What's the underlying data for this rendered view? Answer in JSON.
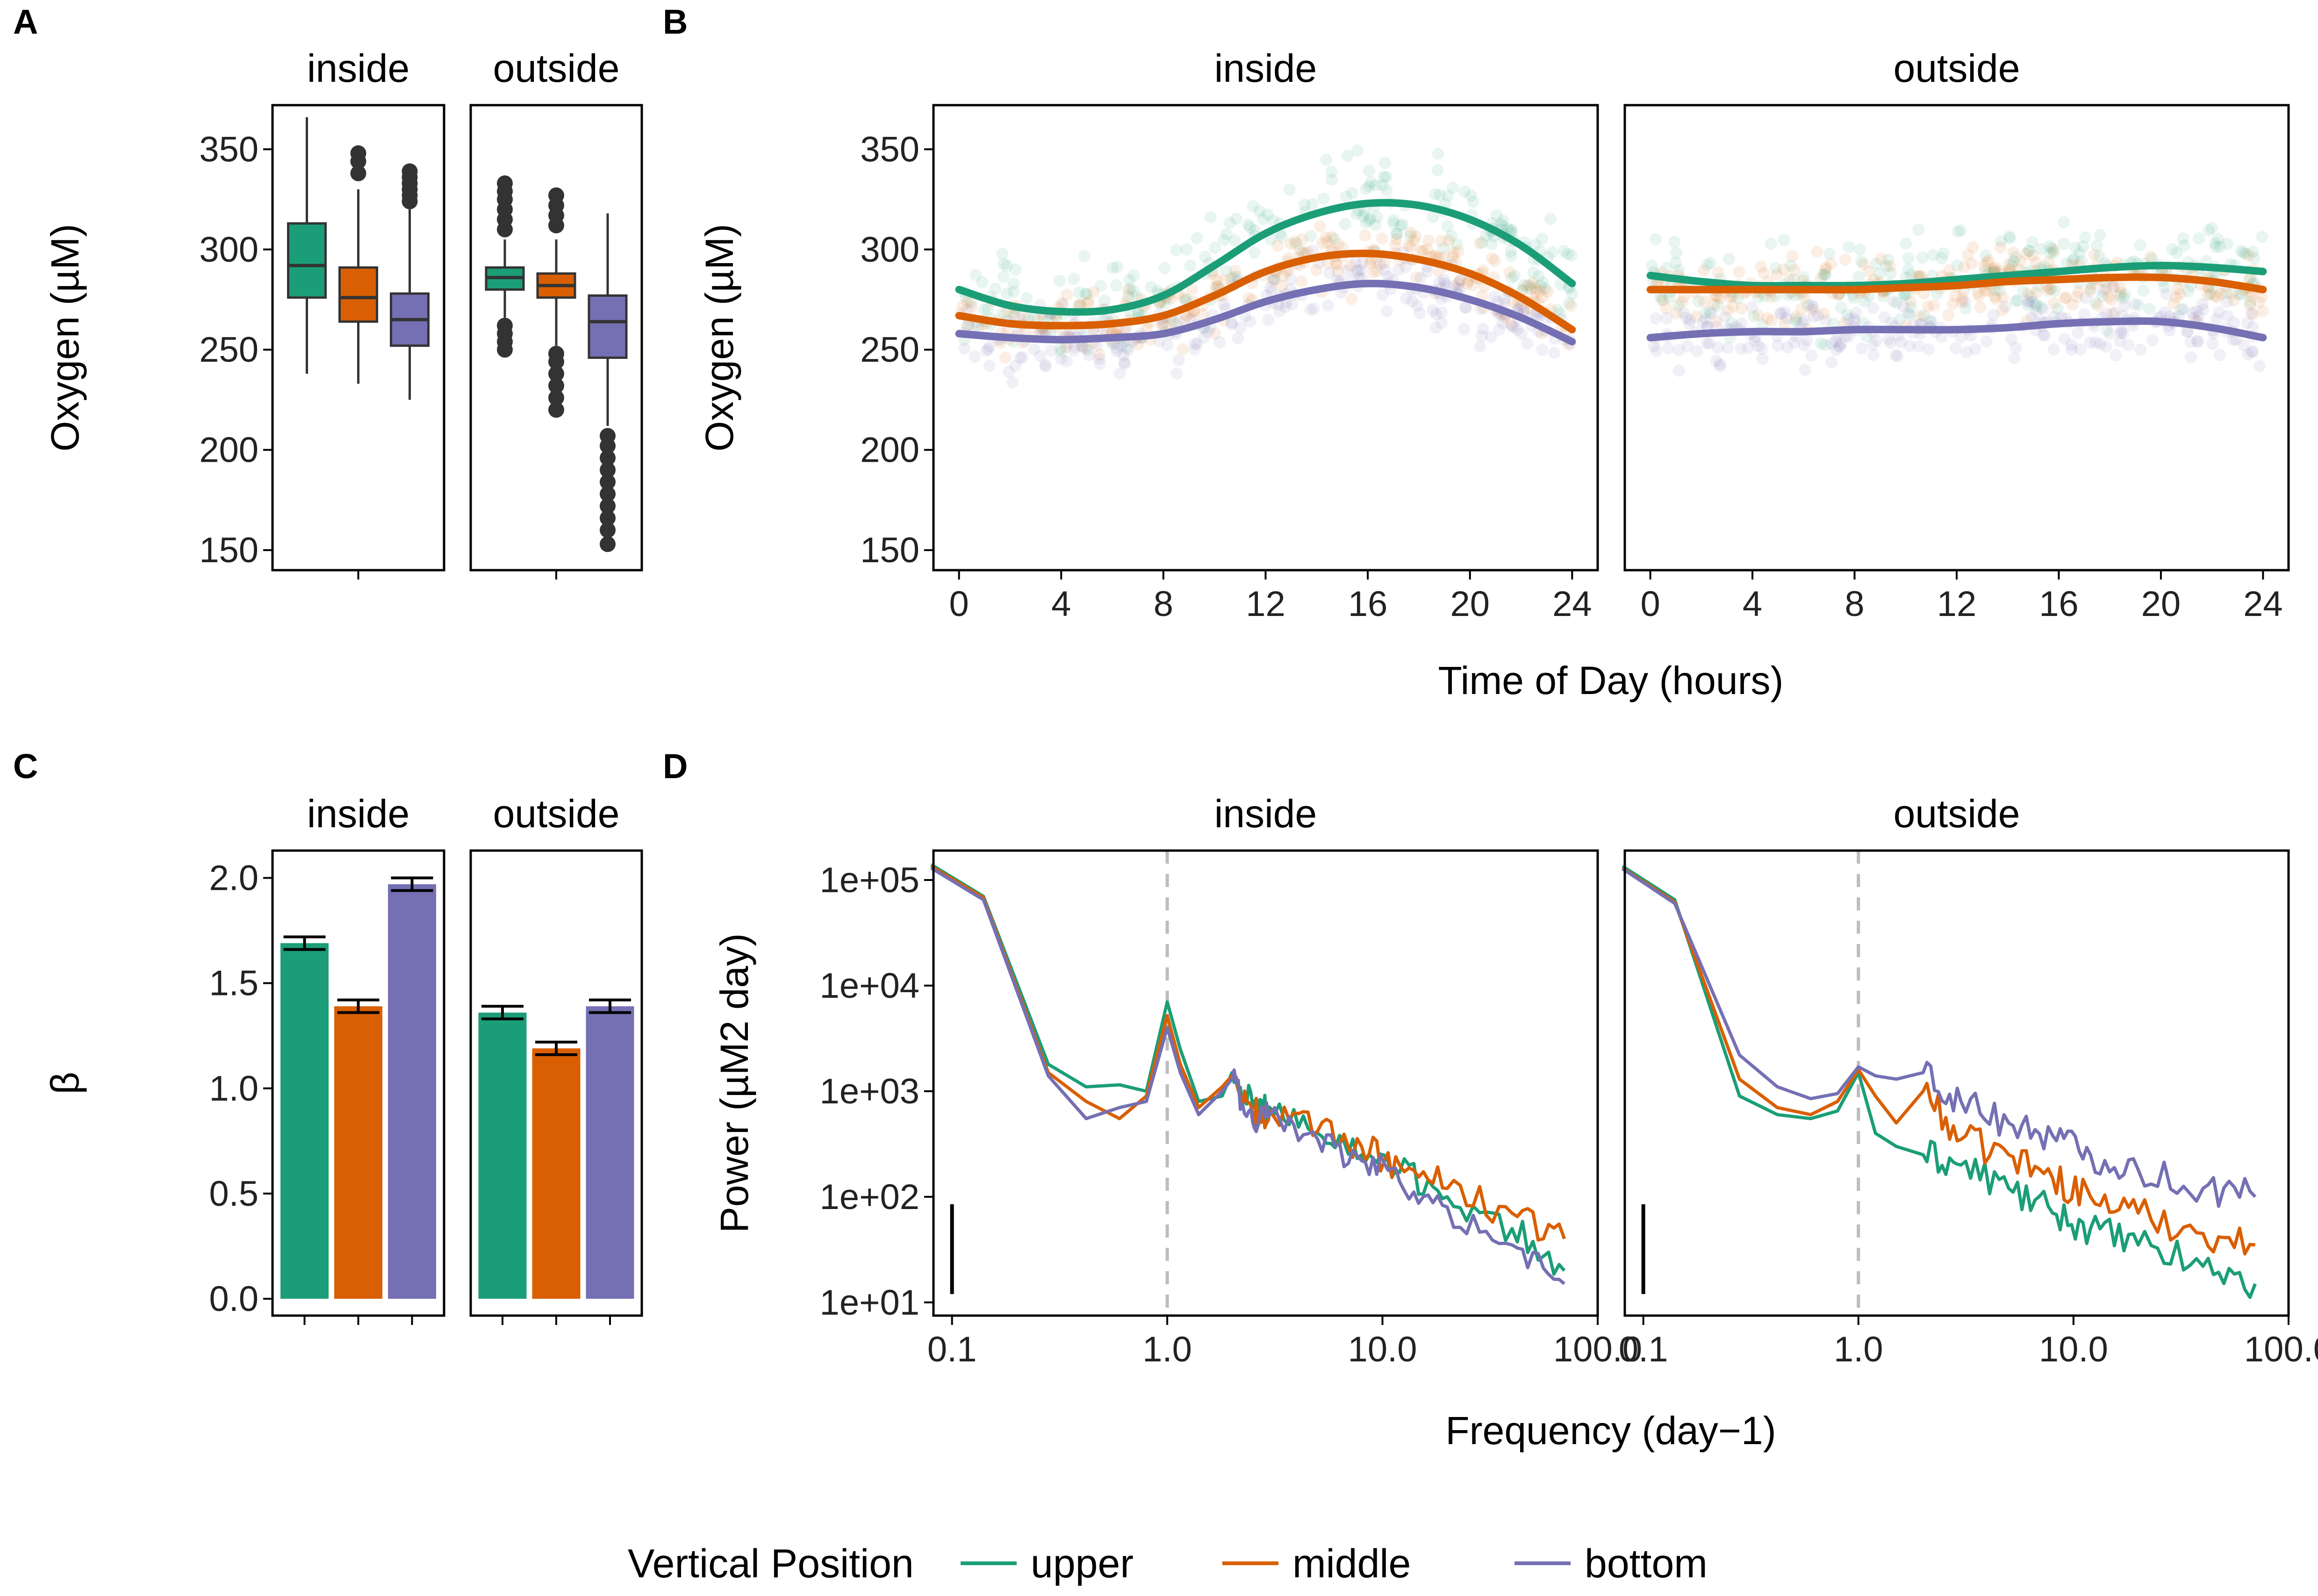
{
  "colors": {
    "upper": "#1b9e77",
    "middle": "#d95f02",
    "bottom": "#7570b3",
    "box_edge": "#333333",
    "outlier": "#333333",
    "refline": "#bdbdbd"
  },
  "legend": {
    "title": "Vertical Position",
    "items": [
      {
        "name": "upper",
        "color": "#1b9e77"
      },
      {
        "name": "middle",
        "color": "#d95f02"
      },
      {
        "name": "bottom",
        "color": "#7570b3"
      }
    ]
  },
  "panels": {
    "A": "A",
    "B": "B",
    "C": "C",
    "D": "D"
  },
  "facets": [
    "inside",
    "outside"
  ],
  "chart_data": [
    {
      "id": "A",
      "type": "box",
      "ylabel": "Oxygen (µM)",
      "ylim": [
        140,
        372
      ],
      "yticks": [
        150,
        200,
        250,
        300,
        350
      ],
      "groups": [
        "upper",
        "middle",
        "bottom"
      ],
      "facets": [
        {
          "name": "inside",
          "boxes": [
            {
              "group": "upper",
              "min": 238,
              "q1": 276,
              "median": 292,
              "q3": 313,
              "max": 366,
              "outliers": []
            },
            {
              "group": "middle",
              "min": 233,
              "q1": 264,
              "median": 276,
              "q3": 291,
              "max": 330,
              "outliers": [
                338,
                344,
                348
              ]
            },
            {
              "group": "bottom",
              "min": 225,
              "q1": 252,
              "median": 265,
              "q3": 278,
              "max": 320,
              "outliers": [
                324,
                327,
                330,
                333,
                336,
                339
              ]
            }
          ]
        },
        {
          "name": "outside",
          "boxes": [
            {
              "group": "upper",
              "min": 266,
              "q1": 280,
              "median": 286,
              "q3": 291,
              "max": 305,
              "outliers": [
                250,
                254,
                258,
                262,
                310,
                315,
                320,
                325,
                329,
                333
              ]
            },
            {
              "group": "middle",
              "min": 252,
              "q1": 276,
              "median": 282,
              "q3": 288,
              "max": 305,
              "outliers": [
                220,
                226,
                232,
                238,
                244,
                248,
                312,
                317,
                322,
                327
              ]
            },
            {
              "group": "bottom",
              "min": 212,
              "q1": 246,
              "median": 264,
              "q3": 277,
              "max": 318,
              "outliers": [
                153,
                160,
                166,
                172,
                178,
                184,
                190,
                196,
                202,
                207
              ]
            }
          ]
        }
      ]
    },
    {
      "id": "B",
      "type": "line",
      "xlabel": "Time of Day (hours)",
      "ylabel": "Oxygen (µM)",
      "xlim": [
        -1,
        25
      ],
      "ylim": [
        140,
        372
      ],
      "xticks": [
        0,
        4,
        8,
        12,
        16,
        20,
        24
      ],
      "yticks": [
        150,
        200,
        250,
        300,
        350
      ],
      "x": [
        0,
        2,
        4,
        6,
        8,
        10,
        12,
        14,
        16,
        18,
        20,
        22,
        24
      ],
      "facets": [
        {
          "name": "inside",
          "series": [
            {
              "name": "upper",
              "values": [
                280,
                272,
                269,
                270,
                277,
                292,
                308,
                318,
                323,
                322,
                315,
                302,
                283
              ]
            },
            {
              "name": "middle",
              "values": [
                267,
                263,
                262,
                263,
                267,
                277,
                289,
                296,
                298,
                295,
                288,
                276,
                260
              ]
            },
            {
              "name": "bottom",
              "values": [
                258,
                256,
                255,
                256,
                258,
                265,
                274,
                280,
                283,
                281,
                275,
                266,
                254
              ]
            }
          ]
        },
        {
          "name": "outside",
          "series": [
            {
              "name": "upper",
              "values": [
                287,
                284,
                282,
                282,
                282,
                283,
                285,
                287,
                289,
                291,
                292,
                291,
                289
              ]
            },
            {
              "name": "middle",
              "values": [
                280,
                280,
                280,
                280,
                280,
                281,
                282,
                284,
                285,
                286,
                286,
                284,
                280
              ]
            },
            {
              "name": "bottom",
              "values": [
                256,
                258,
                259,
                259,
                260,
                260,
                260,
                261,
                263,
                264,
                264,
                261,
                256
              ]
            }
          ]
        }
      ]
    },
    {
      "id": "C",
      "type": "bar",
      "ylabel": "β",
      "ylim": [
        -0.08,
        2.13
      ],
      "yticks": [
        0.0,
        0.5,
        1.0,
        1.5,
        2.0
      ],
      "yticklabels": [
        "0.0",
        "0.5",
        "1.0",
        "1.5",
        "2.0"
      ],
      "categories": [
        "upper",
        "middle",
        "bottom"
      ],
      "facets": [
        {
          "name": "inside",
          "values": [
            1.69,
            1.39,
            1.97
          ],
          "err": [
            0.03,
            0.03,
            0.03
          ]
        },
        {
          "name": "outside",
          "values": [
            1.36,
            1.19,
            1.39
          ],
          "err": [
            0.03,
            0.03,
            0.03
          ]
        }
      ]
    },
    {
      "id": "D",
      "type": "line",
      "xscale": "log",
      "yscale": "log",
      "xlabel": "Frequency (day−1)",
      "ylabel": "Power (µM2 day)",
      "xlim": [
        0.082,
        100
      ],
      "ylim": [
        7.5,
        190000
      ],
      "xticks": [
        0.1,
        1.0,
        10.0,
        100.0
      ],
      "xticklabels": [
        "0.1",
        "1.0",
        "10.0",
        "100.0"
      ],
      "yticks": [
        10,
        100,
        1000,
        10000,
        100000
      ],
      "yticklabels": [
        "1e+01",
        "1e+02",
        "1e+03",
        "1e+04",
        "1e+05"
      ],
      "reference_line_x": 1.0,
      "scale_bar": {
        "x": 0.1,
        "from": 12,
        "to": 85
      },
      "facets": [
        {
          "name": "inside",
          "series": [
            {
              "name": "upper",
              "x": [
                0.08,
                0.14,
                0.28,
                0.42,
                0.6,
                0.8,
                1.0,
                1.15,
                1.4,
                1.8,
                2.0,
                2.5,
                3,
                5,
                8,
                12,
                20,
                40,
                70
              ],
              "values": [
                140000,
                70000,
                1800,
                1100,
                1150,
                1000,
                7000,
                2500,
                800,
                900,
                1500,
                700,
                700,
                400,
                250,
                170,
                100,
                50,
                20
              ]
            },
            {
              "name": "middle",
              "x": [
                0.08,
                0.14,
                0.28,
                0.42,
                0.6,
                0.8,
                1.0,
                1.15,
                1.4,
                1.8,
                2.0,
                2.5,
                3,
                5,
                8,
                12,
                20,
                40,
                70
              ],
              "values": [
                135000,
                68000,
                1500,
                800,
                550,
                900,
                5200,
                1800,
                700,
                1100,
                1400,
                600,
                650,
                420,
                300,
                200,
                120,
                70,
                40
              ]
            },
            {
              "name": "bottom",
              "x": [
                0.08,
                0.14,
                0.28,
                0.42,
                0.6,
                0.8,
                1.0,
                1.15,
                1.4,
                1.8,
                2.0,
                2.5,
                3,
                5,
                8,
                12,
                20,
                40,
                70
              ],
              "values": [
                130000,
                65000,
                1400,
                550,
                700,
                800,
                4000,
                1500,
                600,
                1000,
                1300,
                500,
                600,
                350,
                220,
                140,
                80,
                35,
                15
              ]
            }
          ]
        },
        {
          "name": "outside",
          "series": [
            {
              "name": "upper",
              "x": [
                0.08,
                0.14,
                0.28,
                0.42,
                0.6,
                0.8,
                1.0,
                1.2,
                1.5,
                2,
                3,
                5,
                8,
                12,
                20,
                40,
                70
              ],
              "values": [
                135000,
                65000,
                900,
                600,
                550,
                650,
                1500,
                400,
                300,
                250,
                200,
                120,
                70,
                50,
                35,
                22,
                15
              ]
            },
            {
              "name": "middle",
              "x": [
                0.08,
                0.14,
                0.28,
                0.42,
                0.6,
                0.8,
                1.0,
                1.2,
                1.5,
                2,
                3,
                5,
                8,
                12,
                20,
                40,
                70
              ],
              "values": [
                130000,
                62000,
                1300,
                700,
                600,
                800,
                1600,
                900,
                500,
                1000,
                350,
                250,
                150,
                100,
                70,
                45,
                35
              ]
            },
            {
              "name": "bottom",
              "x": [
                0.08,
                0.14,
                0.28,
                0.42,
                0.6,
                0.8,
                1.0,
                1.2,
                1.5,
                2,
                3,
                5,
                8,
                12,
                20,
                40,
                70
              ],
              "values": [
                128000,
                60000,
                2200,
                1100,
                850,
                950,
                1700,
                1400,
                1300,
                1500,
                800,
                500,
                380,
                250,
                180,
                120,
                100
              ]
            }
          ]
        }
      ]
    }
  ]
}
